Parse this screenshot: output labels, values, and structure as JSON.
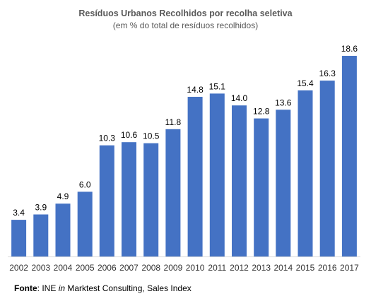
{
  "chart_data": {
    "type": "bar",
    "title": "Resíduos Urbanos Recolhidos por recolha seletiva",
    "subtitle": "(em % do total de resíduos recolhidos)",
    "categories": [
      "2002",
      "2003",
      "2004",
      "2005",
      "2006",
      "2007",
      "2008",
      "2009",
      "2010",
      "2011",
      "2012",
      "2013",
      "2014",
      "2015",
      "2016",
      "2017"
    ],
    "values": [
      3.4,
      3.9,
      4.9,
      6.0,
      10.3,
      10.6,
      10.5,
      11.8,
      14.8,
      15.1,
      14.0,
      12.8,
      13.6,
      15.4,
      16.3,
      18.6
    ],
    "value_labels": [
      "3.4",
      "3.9",
      "4.9",
      "6.0",
      "10.3",
      "10.6",
      "10.5",
      "11.8",
      "14.8",
      "15.1",
      "14.0",
      "12.8",
      "13.6",
      "15.4",
      "16.3",
      "18.6"
    ],
    "ylim": [
      0,
      18.6
    ],
    "grid": false,
    "bar_color": "#4472C4"
  },
  "source": {
    "label": "Fonte",
    "text_before": ": INE ",
    "italic": "in",
    "text_after": " Marktest Consulting, Sales Index"
  }
}
